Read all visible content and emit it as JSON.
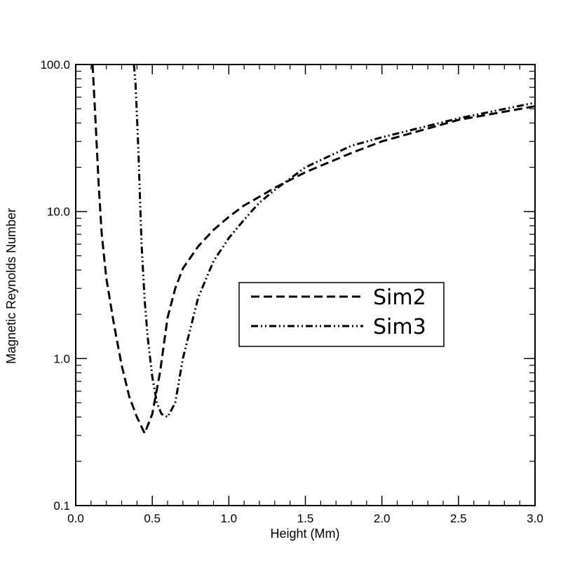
{
  "chart_data": {
    "type": "line",
    "title": "",
    "xlabel": "Height (Mm)",
    "ylabel": "Magnetic Reynolds Number",
    "xlim": [
      0.0,
      3.0
    ],
    "ylim": [
      0.1,
      100.0
    ],
    "yscale": "log",
    "x_ticks": [
      0.0,
      0.5,
      1.0,
      1.5,
      2.0,
      2.5,
      3.0
    ],
    "x_tick_labels": [
      "0.0",
      "0.5",
      "1.0",
      "1.5",
      "2.0",
      "2.5",
      "3.0"
    ],
    "y_ticks": [
      0.1,
      1.0,
      10.0,
      100.0
    ],
    "y_tick_labels": [
      "0.1",
      "1.0",
      "10.0",
      "100.0"
    ],
    "grid": false,
    "legend_position": "center-right",
    "series": [
      {
        "name": "Sim2",
        "dash": "dashed",
        "x": [
          0.11,
          0.13,
          0.15,
          0.17,
          0.2,
          0.25,
          0.3,
          0.35,
          0.4,
          0.45,
          0.5,
          0.55,
          0.6,
          0.65,
          0.7,
          0.8,
          0.9,
          1.0,
          1.1,
          1.2,
          1.3,
          1.5,
          1.8,
          2.0,
          2.5,
          3.0
        ],
        "y": [
          100,
          40,
          15,
          7,
          3.5,
          1.7,
          0.9,
          0.55,
          0.4,
          0.31,
          0.42,
          0.8,
          1.9,
          3.0,
          4.1,
          5.8,
          7.5,
          9.2,
          11,
          12.6,
          14.5,
          18.5,
          25,
          30,
          42,
          52
        ]
      },
      {
        "name": "Sim3",
        "dash": "dash-dot-dot",
        "x": [
          0.38,
          0.39,
          0.4,
          0.41,
          0.42,
          0.43,
          0.45,
          0.47,
          0.5,
          0.53,
          0.56,
          0.6,
          0.65,
          0.7,
          0.8,
          0.9,
          1.0,
          1.1,
          1.2,
          1.3,
          1.5,
          1.8,
          2.0,
          2.5,
          3.0
        ],
        "y": [
          100,
          75,
          45,
          25,
          12,
          6,
          2.5,
          1.4,
          0.75,
          0.5,
          0.42,
          0.4,
          0.5,
          1.0,
          2.6,
          4.6,
          6.6,
          8.8,
          11.5,
          14,
          20,
          28,
          32,
          43,
          55
        ]
      }
    ]
  }
}
